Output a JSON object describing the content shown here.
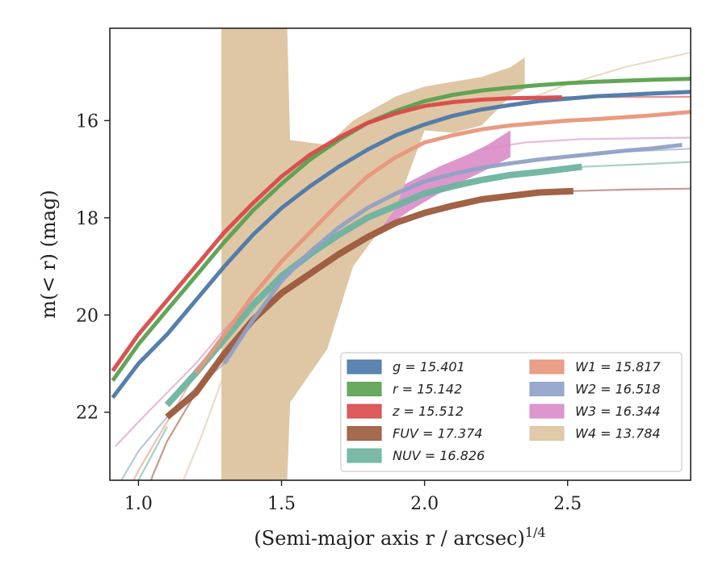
{
  "chart_data": {
    "type": "line",
    "xlabel": "(Semi-major axis r / arcsec)",
    "xlabel_exp": "1/4",
    "ylabel": "m(< r) (mag)",
    "xlim": [
      0.9,
      2.93
    ],
    "ylim": [
      23.4,
      14.1
    ],
    "y_inverted": true,
    "grid": false,
    "legend_position": "lower-right",
    "xticks": [
      1.0,
      1.5,
      2.0,
      2.5
    ],
    "xtick_labels": [
      "1.0",
      "1.5",
      "2.0",
      "2.5"
    ],
    "yticks": [
      16,
      18,
      20,
      22
    ],
    "ytick_labels": [
      "16",
      "18",
      "20",
      "22"
    ],
    "series": [
      {
        "name": "g = 15.401",
        "sym": "g",
        "val": "15.401",
        "color": "#4c78a8",
        "main": [
          [
            0.91,
            21.7
          ],
          [
            1.0,
            21.0
          ],
          [
            1.1,
            20.4
          ],
          [
            1.2,
            19.7
          ],
          [
            1.3,
            19.0
          ],
          [
            1.4,
            18.35
          ],
          [
            1.5,
            17.8
          ],
          [
            1.6,
            17.35
          ],
          [
            1.7,
            16.95
          ],
          [
            1.8,
            16.6
          ],
          [
            1.9,
            16.3
          ],
          [
            2.0,
            16.08
          ],
          [
            2.1,
            15.9
          ],
          [
            2.2,
            15.77
          ],
          [
            2.3,
            15.68
          ],
          [
            2.4,
            15.6
          ],
          [
            2.5,
            15.55
          ],
          [
            2.6,
            15.5
          ],
          [
            2.7,
            15.47
          ],
          [
            2.8,
            15.44
          ],
          [
            2.93,
            15.41
          ]
        ],
        "ext": []
      },
      {
        "name": "r = 15.142",
        "sym": "r",
        "val": "15.142",
        "color": "#59a14f",
        "main": [
          [
            0.91,
            21.35
          ],
          [
            1.0,
            20.6
          ],
          [
            1.1,
            19.9
          ],
          [
            1.2,
            19.2
          ],
          [
            1.3,
            18.5
          ],
          [
            1.4,
            17.85
          ],
          [
            1.5,
            17.3
          ],
          [
            1.6,
            16.8
          ],
          [
            1.7,
            16.4
          ],
          [
            1.8,
            16.05
          ],
          [
            1.9,
            15.8
          ],
          [
            2.0,
            15.6
          ],
          [
            2.1,
            15.47
          ],
          [
            2.2,
            15.38
          ],
          [
            2.3,
            15.32
          ],
          [
            2.4,
            15.27
          ],
          [
            2.5,
            15.23
          ],
          [
            2.6,
            15.2
          ],
          [
            2.7,
            15.18
          ],
          [
            2.8,
            15.16
          ],
          [
            2.93,
            15.14
          ]
        ],
        "ext": []
      },
      {
        "name": "z = 15.512",
        "sym": "z",
        "val": "15.512",
        "color": "#d84a4a",
        "main": [
          [
            0.91,
            21.15
          ],
          [
            1.0,
            20.4
          ],
          [
            1.1,
            19.7
          ],
          [
            1.2,
            19.0
          ],
          [
            1.3,
            18.3
          ],
          [
            1.4,
            17.7
          ],
          [
            1.5,
            17.15
          ],
          [
            1.6,
            16.7
          ],
          [
            1.7,
            16.35
          ],
          [
            1.8,
            16.05
          ],
          [
            1.9,
            15.85
          ],
          [
            2.0,
            15.7
          ],
          [
            2.1,
            15.62
          ],
          [
            2.2,
            15.57
          ],
          [
            2.3,
            15.54
          ],
          [
            2.4,
            15.53
          ],
          [
            2.48,
            15.52
          ]
        ],
        "ext": [
          [
            2.48,
            15.52
          ],
          [
            2.93,
            15.51
          ]
        ]
      },
      {
        "name": "FUV = 17.374",
        "sym": "FUV",
        "val": "17.374",
        "color": "#9c5a3c",
        "main": [
          [
            1.1,
            22.1
          ],
          [
            1.2,
            21.6
          ],
          [
            1.3,
            20.8
          ],
          [
            1.4,
            20.1
          ],
          [
            1.5,
            19.55
          ],
          [
            1.6,
            19.15
          ],
          [
            1.7,
            18.75
          ],
          [
            1.8,
            18.4
          ],
          [
            1.9,
            18.1
          ],
          [
            2.0,
            17.9
          ],
          [
            2.1,
            17.75
          ],
          [
            2.2,
            17.62
          ],
          [
            2.3,
            17.55
          ],
          [
            2.4,
            17.48
          ],
          [
            2.52,
            17.45
          ]
        ],
        "ext": [
          [
            0.98,
            24.5
          ],
          [
            1.05,
            23.3
          ],
          [
            1.1,
            22.6
          ],
          [
            1.2,
            21.6
          ],
          [
            1.3,
            20.8
          ]
        ],
        "ext2": [
          [
            2.52,
            17.45
          ],
          [
            2.7,
            17.42
          ],
          [
            2.93,
            17.4
          ]
        ]
      },
      {
        "name": "NUV = 16.826",
        "sym": "NUV",
        "val": "16.826",
        "color": "#6db3a0",
        "main": [
          [
            1.1,
            21.85
          ],
          [
            1.2,
            21.2
          ],
          [
            1.3,
            20.5
          ],
          [
            1.4,
            19.8
          ],
          [
            1.5,
            19.2
          ],
          [
            1.6,
            18.75
          ],
          [
            1.7,
            18.35
          ],
          [
            1.8,
            18.0
          ],
          [
            1.9,
            17.75
          ],
          [
            2.0,
            17.5
          ],
          [
            2.1,
            17.35
          ],
          [
            2.2,
            17.22
          ],
          [
            2.3,
            17.12
          ],
          [
            2.4,
            17.06
          ],
          [
            2.55,
            16.95
          ]
        ],
        "ext": [
          [
            0.95,
            24.0
          ],
          [
            1.0,
            23.4
          ],
          [
            1.1,
            22.3
          ]
        ],
        "ext2": [
          [
            2.55,
            16.95
          ],
          [
            2.75,
            16.9
          ],
          [
            2.93,
            16.85
          ]
        ]
      },
      {
        "name": "W1 = 15.817",
        "sym": "W1",
        "val": "15.817",
        "color": "#e8967a",
        "main": [
          [
            1.2,
            21.2
          ],
          [
            1.3,
            20.4
          ],
          [
            1.4,
            19.6
          ],
          [
            1.5,
            18.9
          ],
          [
            1.6,
            18.3
          ],
          [
            1.7,
            17.7
          ],
          [
            1.8,
            17.15
          ],
          [
            1.9,
            16.75
          ],
          [
            2.0,
            16.45
          ],
          [
            2.1,
            16.3
          ],
          [
            2.2,
            16.18
          ],
          [
            2.3,
            16.1
          ],
          [
            2.4,
            16.05
          ],
          [
            2.5,
            16.0
          ],
          [
            2.6,
            15.97
          ],
          [
            2.7,
            15.93
          ],
          [
            2.8,
            15.89
          ],
          [
            2.93,
            15.82
          ]
        ],
        "ext": [
          [
            0.95,
            23.8
          ],
          [
            1.0,
            23.2
          ],
          [
            1.1,
            22.2
          ],
          [
            1.2,
            21.2
          ]
        ]
      },
      {
        "name": "W2 = 16.518",
        "sym": "W2",
        "val": "16.518",
        "color": "#8fa1c6",
        "main": [
          [
            1.3,
            21.0
          ],
          [
            1.4,
            20.1
          ],
          [
            1.5,
            19.3
          ],
          [
            1.6,
            18.7
          ],
          [
            1.7,
            18.2
          ],
          [
            1.8,
            17.8
          ],
          [
            1.9,
            17.5
          ],
          [
            2.0,
            17.25
          ],
          [
            2.1,
            17.1
          ],
          [
            2.2,
            16.97
          ],
          [
            2.3,
            16.88
          ],
          [
            2.4,
            16.8
          ],
          [
            2.5,
            16.74
          ],
          [
            2.6,
            16.68
          ],
          [
            2.7,
            16.62
          ],
          [
            2.8,
            16.57
          ],
          [
            2.9,
            16.5
          ]
        ],
        "ext": [
          [
            0.92,
            23.6
          ],
          [
            1.0,
            22.8
          ],
          [
            1.1,
            22.1
          ],
          [
            1.2,
            21.5
          ],
          [
            1.3,
            21.0
          ]
        ],
        "ext2": [
          [
            2.5,
            16.74
          ],
          [
            2.7,
            16.64
          ],
          [
            2.93,
            16.58
          ]
        ]
      },
      {
        "name": "W3 = 16.344",
        "sym": "W3",
        "val": "16.344",
        "color": "#d98cc6",
        "main": [],
        "ext": [
          [
            0.92,
            22.7
          ],
          [
            1.0,
            22.2
          ],
          [
            1.1,
            21.6
          ],
          [
            1.2,
            21.0
          ],
          [
            1.3,
            20.3
          ],
          [
            1.4,
            19.7
          ],
          [
            1.5,
            19.2
          ],
          [
            1.6,
            18.8
          ],
          [
            1.7,
            18.3
          ]
        ],
        "ext2": [
          [
            2.2,
            16.6
          ],
          [
            2.35,
            16.45
          ],
          [
            2.55,
            16.38
          ],
          [
            2.93,
            16.35
          ]
        ],
        "band": {
          "x": [
            1.67,
            1.75,
            1.85,
            1.95,
            2.05,
            2.15,
            2.22,
            2.3
          ],
          "lo": [
            18.3,
            17.9,
            17.55,
            17.25,
            16.95,
            16.7,
            16.5,
            16.2
          ],
          "hi": [
            19.05,
            18.65,
            18.25,
            17.85,
            17.5,
            17.2,
            17.0,
            16.75
          ]
        }
      },
      {
        "name": "W4 = 13.784",
        "sym": "W4",
        "val": "13.784",
        "color": "#ddc4a1",
        "main": [],
        "ext": [
          [
            1.15,
            23.5
          ],
          [
            1.22,
            22.5
          ],
          [
            1.3,
            21.2
          ],
          [
            1.4,
            19.8
          ],
          [
            1.5,
            18.8
          ],
          [
            1.6,
            18.0
          ],
          [
            1.7,
            17.3
          ]
        ],
        "ext2": [
          [
            2.3,
            15.7
          ],
          [
            2.5,
            15.25
          ],
          [
            2.7,
            14.9
          ],
          [
            2.93,
            14.6
          ]
        ],
        "band": {
          "x": [
            1.29,
            1.52,
            1.53,
            1.66,
            1.75,
            1.9,
            2.0,
            2.1,
            2.2,
            2.3,
            2.35
          ],
          "lo": [
            14.1,
            14.1,
            16.4,
            16.5,
            16.0,
            15.5,
            15.3,
            15.2,
            15.1,
            14.9,
            14.7
          ],
          "hi": [
            23.4,
            23.4,
            21.8,
            20.7,
            19.0,
            17.8,
            16.2,
            16.25,
            16.1,
            15.5,
            15.35
          ]
        }
      }
    ]
  }
}
